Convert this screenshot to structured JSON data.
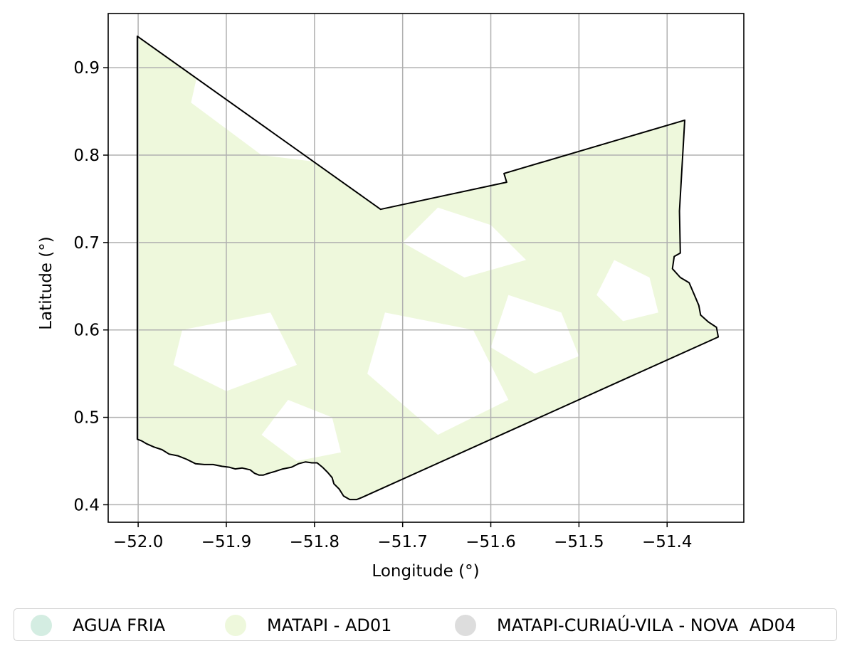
{
  "chart_data": {
    "type": "map",
    "xlabel": "Longitude (°)",
    "ylabel": "Latitude (°)",
    "xlim": [
      -52.034,
      -51.313
    ],
    "ylim": [
      0.38,
      0.962
    ],
    "grid": true,
    "xticks": [
      {
        "value": -52.0,
        "label": "−52.0"
      },
      {
        "value": -51.9,
        "label": "−51.9"
      },
      {
        "value": -51.8,
        "label": "−51.8"
      },
      {
        "value": -51.7,
        "label": "−51.7"
      },
      {
        "value": -51.6,
        "label": "−51.6"
      },
      {
        "value": -51.5,
        "label": "−51.5"
      },
      {
        "value": -51.4,
        "label": "−51.4"
      }
    ],
    "yticks": [
      {
        "value": 0.4,
        "label": "0.4"
      },
      {
        "value": 0.5,
        "label": "0.5"
      },
      {
        "value": 0.6,
        "label": "0.6"
      },
      {
        "value": 0.7,
        "label": "0.7"
      },
      {
        "value": 0.8,
        "label": "0.8"
      },
      {
        "value": 0.9,
        "label": "0.9"
      }
    ],
    "boundary": [
      [
        -52.001,
        0.936
      ],
      [
        -51.725,
        0.738
      ],
      [
        -51.582,
        0.769
      ],
      [
        -51.585,
        0.779
      ],
      [
        -51.38,
        0.84
      ],
      [
        -51.386,
        0.736
      ],
      [
        -51.385,
        0.688
      ],
      [
        -51.392,
        0.684
      ],
      [
        -51.394,
        0.67
      ],
      [
        -51.385,
        0.66
      ],
      [
        -51.375,
        0.654
      ],
      [
        -51.369,
        0.64
      ],
      [
        -51.364,
        0.628
      ],
      [
        -51.362,
        0.617
      ],
      [
        -51.353,
        0.609
      ],
      [
        -51.344,
        0.603
      ],
      [
        -51.342,
        0.592
      ],
      [
        -51.747,
        0.408
      ],
      [
        -51.752,
        0.406
      ],
      [
        -51.76,
        0.406
      ],
      [
        -51.767,
        0.41
      ],
      [
        -51.772,
        0.418
      ],
      [
        -51.778,
        0.424
      ],
      [
        -51.78,
        0.431
      ],
      [
        -51.785,
        0.437
      ],
      [
        -51.791,
        0.443
      ],
      [
        -51.797,
        0.448
      ],
      [
        -51.803,
        0.448
      ],
      [
        -51.81,
        0.449
      ],
      [
        -51.818,
        0.447
      ],
      [
        -51.826,
        0.443
      ],
      [
        -51.836,
        0.441
      ],
      [
        -51.845,
        0.438
      ],
      [
        -51.852,
        0.436
      ],
      [
        -51.858,
        0.434
      ],
      [
        -51.863,
        0.434
      ],
      [
        -51.868,
        0.436
      ],
      [
        -51.873,
        0.44
      ],
      [
        -51.882,
        0.442
      ],
      [
        -51.89,
        0.441
      ],
      [
        -51.897,
        0.443
      ],
      [
        -51.905,
        0.444
      ],
      [
        -51.915,
        0.446
      ],
      [
        -51.925,
        0.446
      ],
      [
        -51.935,
        0.447
      ],
      [
        -51.945,
        0.452
      ],
      [
        -51.955,
        0.456
      ],
      [
        -51.965,
        0.458
      ],
      [
        -51.973,
        0.463
      ],
      [
        -51.982,
        0.466
      ],
      [
        -51.991,
        0.47
      ],
      [
        -51.996,
        0.473
      ],
      [
        -52.001,
        0.475
      ],
      [
        -52.001,
        0.936
      ]
    ],
    "series": [
      {
        "name": "AGUA FRIA",
        "color": "#d4ede2"
      },
      {
        "name": "MATAPI - AD01",
        "color": "#eef8dc"
      },
      {
        "name": "MATAPI-CURIAÚ-VILA - NOVA  AD04",
        "color": "#dddddd"
      }
    ],
    "legend_position": "bottom"
  },
  "legend": {
    "items": [
      {
        "label": "AGUA FRIA",
        "color": "#d4ede2"
      },
      {
        "label": "MATAPI - AD01",
        "color": "#eef8dc"
      },
      {
        "label": "MATAPI-CURIAÚ-VILA - NOVA  AD04",
        "color": "#dddddd"
      }
    ]
  }
}
